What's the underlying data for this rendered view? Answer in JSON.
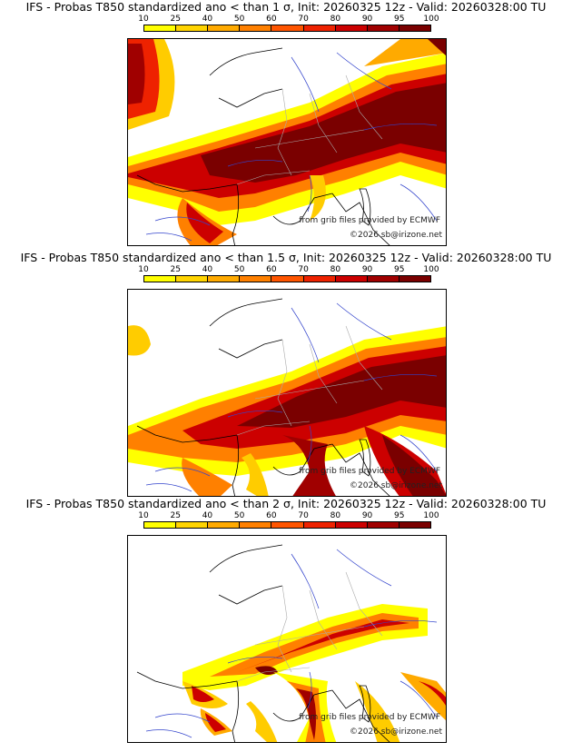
{
  "panels": [
    {
      "title": "IFS - Probas T850  standardized ano < than 1 σ, Init: 20260325 12z - Valid: 20260328:00 TU"
    },
    {
      "title": "IFS - Probas T850  standardized ano < than 1.5 σ, Init: 20260325 12z - Valid: 20260328:00 TU"
    },
    {
      "title": "IFS - Probas T850  standardized ano < than 2 σ, Init: 20260325 12z - Valid: 20260328:00 TU"
    }
  ],
  "colorbar": {
    "ticks": [
      "10",
      "25",
      "40",
      "50",
      "60",
      "70",
      "80",
      "90",
      "95",
      "100"
    ],
    "colors": [
      "#ffff00",
      "#ffd400",
      "#ffaa00",
      "#ff8000",
      "#ff5500",
      "#ee2200",
      "#cc0000",
      "#a00000",
      "#7a0000"
    ]
  },
  "credits": {
    "source": "from grib files provided by ECMWF",
    "copyright": "©2026 sb@irizone.net"
  }
}
